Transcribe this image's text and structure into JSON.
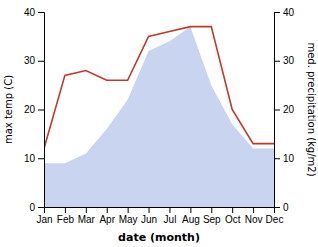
{
  "chart_data": {
    "type": "line",
    "xlabel": "date (month)",
    "ylabel": "max temp (C)",
    "y2label": "med. precipitation (kg/m2)",
    "categories": [
      "Jan",
      "Feb",
      "Mar",
      "Apr",
      "May",
      "Jun",
      "Jul",
      "Aug",
      "Sep",
      "Oct",
      "Nov",
      "Dec"
    ],
    "series": [
      {
        "type": "area",
        "color": "#c8d4f0",
        "values": [
          9,
          9,
          11,
          16,
          22,
          32,
          34,
          37,
          25,
          17,
          12,
          12
        ]
      },
      {
        "type": "line",
        "color": "#c0392b",
        "axis": "y2",
        "values": [
          12,
          27,
          28,
          26,
          26,
          35,
          36,
          37,
          37,
          20,
          13,
          13
        ]
      }
    ],
    "ylim": [
      0,
      40
    ],
    "yticks": [
      0,
      10,
      20,
      30,
      40
    ],
    "y2lim": [
      0,
      40
    ],
    "y2ticks": [
      0,
      10,
      20,
      30,
      40
    ],
    "grid": false
  }
}
